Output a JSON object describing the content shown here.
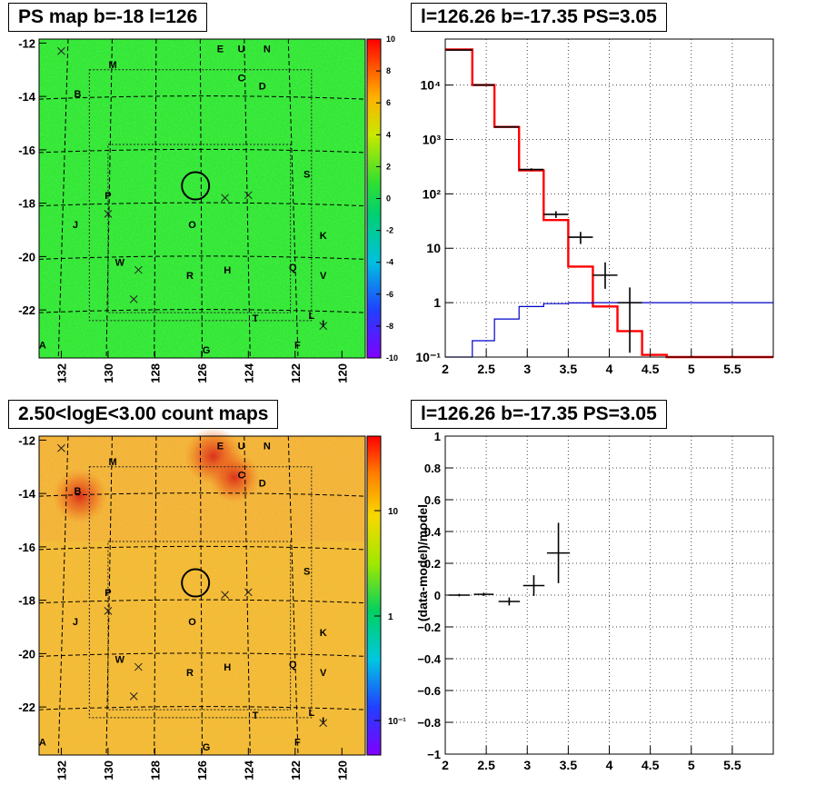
{
  "panels": {
    "tl_title": "PS map b=-18 l=126",
    "tr_title": "l=126.26 b=-17.35 PS=3.05",
    "bl_title": "2.50<logE<3.00 count maps",
    "br_title": "l=126.26 b=-17.35 PS=3.05"
  },
  "map": {
    "yticks": [
      "-12",
      "-14",
      "-16",
      "-18",
      "-20",
      "-22"
    ],
    "xticks": [
      "132",
      "130",
      "128",
      "126",
      "124",
      "122",
      "120"
    ],
    "source_labels": [
      {
        "t": "E",
        "l": 125.2,
        "b": -12.2
      },
      {
        "t": "U",
        "l": 124.3,
        "b": -12.2
      },
      {
        "t": "N",
        "l": 123.2,
        "b": -12.2
      },
      {
        "t": "M",
        "l": 129.8,
        "b": -12.8
      },
      {
        "t": "C",
        "l": 124.3,
        "b": -13.3
      },
      {
        "t": "D",
        "l": 123.4,
        "b": -13.6
      },
      {
        "t": "B",
        "l": 131.3,
        "b": -13.9
      },
      {
        "t": "S",
        "l": 121.5,
        "b": -16.9
      },
      {
        "t": "P",
        "l": 130.0,
        "b": -17.7
      },
      {
        "t": "J",
        "l": 131.4,
        "b": -18.8
      },
      {
        "t": "O",
        "l": 126.4,
        "b": -18.8
      },
      {
        "t": "K",
        "l": 120.8,
        "b": -19.2
      },
      {
        "t": "W",
        "l": 129.5,
        "b": -20.2
      },
      {
        "t": "H",
        "l": 124.9,
        "b": -20.5
      },
      {
        "t": "Q",
        "l": 122.1,
        "b": -20.4
      },
      {
        "t": "R",
        "l": 126.5,
        "b": -20.7
      },
      {
        "t": "V",
        "l": 120.8,
        "b": -20.7
      },
      {
        "t": "T",
        "l": 123.7,
        "b": -22.3
      },
      {
        "t": "L",
        "l": 121.3,
        "b": -22.2
      },
      {
        "t": "I",
        "l": 120.8,
        "b": -22.5
      },
      {
        "t": "A",
        "l": 132.8,
        "b": -23.3
      },
      {
        "t": "F",
        "l": 121.9,
        "b": -23.3
      },
      {
        "t": "G",
        "l": 125.8,
        "b": -23.5
      }
    ],
    "crosses": [
      {
        "l": 132.0,
        "b": -12.3
      },
      {
        "l": 130.0,
        "b": -18.4
      },
      {
        "l": 128.7,
        "b": -20.5
      },
      {
        "l": 128.9,
        "b": -21.6
      },
      {
        "l": 125.0,
        "b": -17.8
      },
      {
        "l": 124.0,
        "b": -17.7
      },
      {
        "l": 120.8,
        "b": -22.6
      }
    ],
    "circle": {
      "l": 126.26,
      "b": -17.35
    },
    "colors": {
      "ps_bg": "#33e633",
      "count_bg": "#f2b93a"
    }
  },
  "ps_scale": {
    "ticks": [
      "10",
      "8",
      "6",
      "4",
      "2",
      "0",
      "-2",
      "-4",
      "-6",
      "-8",
      "-10"
    ]
  },
  "count_scale": {
    "ticks": [
      "10",
      "1",
      "10⁻¹"
    ]
  },
  "chart_data": [
    {
      "type": "line",
      "subtype": "step",
      "yscale": "log",
      "xlim": [
        2,
        6
      ],
      "ylim": [
        0.1,
        70000
      ],
      "xticks": [
        "2",
        "2.5",
        "3",
        "3.5",
        "4",
        "4.5",
        "5",
        "5.5"
      ],
      "yticks": [
        "10⁻¹",
        "1",
        "10",
        "10²",
        "10³",
        "10⁴"
      ],
      "grid": true,
      "series": [
        {
          "role": "model",
          "color": "#ff0000",
          "bins": [
            2.0,
            2.33,
            2.6,
            2.9,
            3.2,
            3.5,
            3.8,
            4.1,
            4.4,
            4.7,
            5.0,
            6.0
          ],
          "values": [
            45000,
            10000,
            1700,
            270,
            33,
            4.6,
            0.85,
            0.3,
            0.11,
            0.1,
            0.1
          ]
        },
        {
          "role": "source",
          "color": "#0000cc",
          "bins": [
            2.0,
            2.33,
            2.6,
            2.9,
            3.2,
            3.5,
            3.8,
            4.1,
            4.4,
            6.0
          ],
          "values": [
            0.1,
            0.2,
            0.5,
            0.85,
            0.96,
            0.99,
            1.0,
            1.0,
            1.0
          ]
        },
        {
          "role": "data",
          "color": "#000000",
          "x": [
            2.17,
            2.47,
            2.75,
            3.05,
            3.35,
            3.65,
            3.95,
            4.25
          ],
          "y": [
            44000,
            10000,
            1700,
            280,
            42,
            16,
            3.2,
            1.0
          ],
          "xerr": [
            0.16,
            0.13,
            0.15,
            0.15,
            0.15,
            0.15,
            0.15,
            0.15
          ],
          "ylo": [
            43000,
            9800,
            1650,
            265,
            36,
            12,
            1.8,
            0.12
          ],
          "yhi": [
            45000,
            10200,
            1750,
            295,
            48,
            20,
            5.5,
            1.9
          ]
        }
      ]
    },
    {
      "type": "scatter",
      "ylabel": "(data-model)/model",
      "xlim": [
        2,
        6
      ],
      "ylim": [
        -1,
        1
      ],
      "xticks": [
        "2",
        "2.5",
        "3",
        "3.5",
        "4",
        "4.5",
        "5",
        "5.5"
      ],
      "yticks": [
        "1",
        "0.8",
        "0.6",
        "0.4",
        "0.2",
        "0",
        "−0.2",
        "−0.4",
        "−0.6",
        "−0.8",
        "−1"
      ],
      "grid": true,
      "series": [
        {
          "role": "residual",
          "color": "#000000",
          "x": [
            2.17,
            2.47,
            2.78,
            3.08,
            3.38
          ],
          "y": [
            0.0,
            0.005,
            -0.04,
            0.06,
            0.265
          ],
          "xerr": [
            0.13,
            0.12,
            0.13,
            0.13,
            0.14
          ],
          "yerr": [
            0.008,
            0.01,
            0.025,
            0.065,
            0.19
          ]
        }
      ]
    }
  ]
}
